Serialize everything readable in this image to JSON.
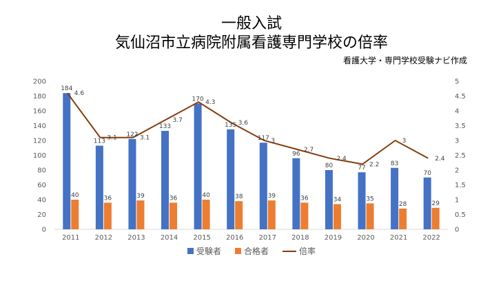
{
  "chart_data": {
    "type": "bar",
    "title": "一般入試",
    "subtitle": "気仙沼市立病院附属看護専門学校の倍率",
    "credit": "看護大学・専門学校受験ナビ作成",
    "categories": [
      "2011",
      "2012",
      "2013",
      "2014",
      "2015",
      "2016",
      "2017",
      "2018",
      "2019",
      "2020",
      "2021",
      "2022"
    ],
    "series": [
      {
        "name": "受験者",
        "type": "bar",
        "axis": "left",
        "color": "#4472c4",
        "values": [
          184,
          113,
          122,
          133,
          170,
          135,
          117,
          96,
          80,
          77,
          83,
          70
        ]
      },
      {
        "name": "合格者",
        "type": "bar",
        "axis": "left",
        "color": "#ed7d31",
        "values": [
          40,
          36,
          39,
          36,
          40,
          38,
          39,
          36,
          34,
          35,
          28,
          29
        ]
      },
      {
        "name": "倍率",
        "type": "line",
        "axis": "right",
        "color": "#843c0c",
        "values": [
          4.6,
          3.1,
          3.1,
          3.7,
          4.3,
          3.6,
          3,
          2.7,
          2.4,
          2.2,
          3,
          2.4
        ]
      }
    ],
    "ylim": [
      0,
      200
    ],
    "yticks": [
      0,
      20,
      40,
      60,
      80,
      100,
      120,
      140,
      160,
      180,
      200
    ],
    "y2lim": [
      0,
      5
    ],
    "y2ticks": [
      0,
      0.5,
      1,
      1.5,
      2,
      2.5,
      3,
      3.5,
      4,
      4.5,
      5
    ],
    "grid": false,
    "legend": "bottom"
  }
}
